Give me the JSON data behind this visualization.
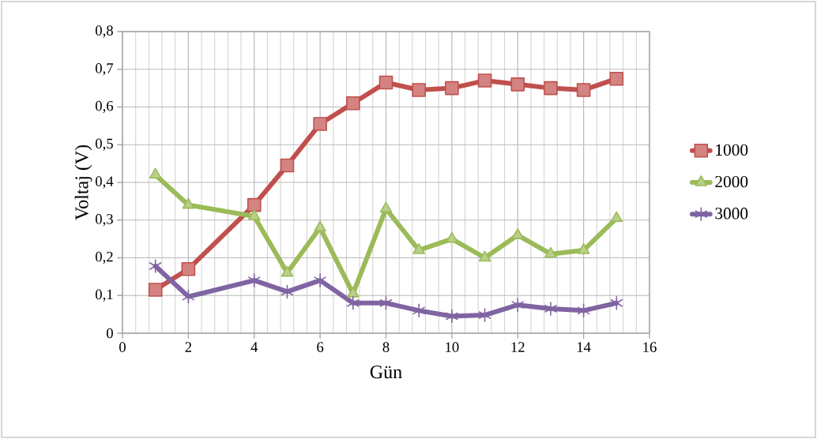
{
  "chart_data": {
    "type": "line",
    "xlabel": "Gün",
    "ylabel": "Voltaj (V)",
    "x": [
      1,
      2,
      4,
      5,
      6,
      7,
      8,
      9,
      10,
      11,
      12,
      13,
      14,
      15
    ],
    "series": [
      {
        "name": "1000",
        "color": "#c0504d",
        "marker": "square",
        "values": [
          0.115,
          0.17,
          0.34,
          0.445,
          0.555,
          0.61,
          0.665,
          0.645,
          0.65,
          0.67,
          0.66,
          0.65,
          0.645,
          0.675
        ]
      },
      {
        "name": "2000",
        "color": "#9bbb59",
        "marker": "triangle",
        "values": [
          0.42,
          0.34,
          0.31,
          0.16,
          0.28,
          0.105,
          0.33,
          0.22,
          0.25,
          0.2,
          0.26,
          0.21,
          0.22,
          0.305
        ]
      },
      {
        "name": "3000",
        "color": "#8064a2",
        "marker": "cross",
        "values": [
          0.178,
          0.097,
          0.14,
          0.11,
          0.14,
          0.08,
          0.08,
          0.06,
          0.045,
          0.048,
          0.075,
          0.065,
          0.06,
          0.08
        ]
      }
    ],
    "xlim": [
      0,
      16
    ],
    "xticks": [
      0,
      2,
      4,
      6,
      8,
      10,
      12,
      14,
      16
    ],
    "ylim": [
      0,
      0.8
    ],
    "yticks": [
      {
        "value": 0,
        "label": "0"
      },
      {
        "value": 0.1,
        "label": "0,1"
      },
      {
        "value": 0.2,
        "label": "0,2"
      },
      {
        "value": 0.3,
        "label": "0,3"
      },
      {
        "value": 0.4,
        "label": "0,4"
      },
      {
        "value": 0.5,
        "label": "0,5"
      },
      {
        "value": 0.6,
        "label": "0,6"
      },
      {
        "value": 0.7,
        "label": "0,7"
      },
      {
        "value": 0.8,
        "label": "0,8"
      }
    ],
    "grid": true,
    "legend": "right",
    "line_style": "solid"
  }
}
